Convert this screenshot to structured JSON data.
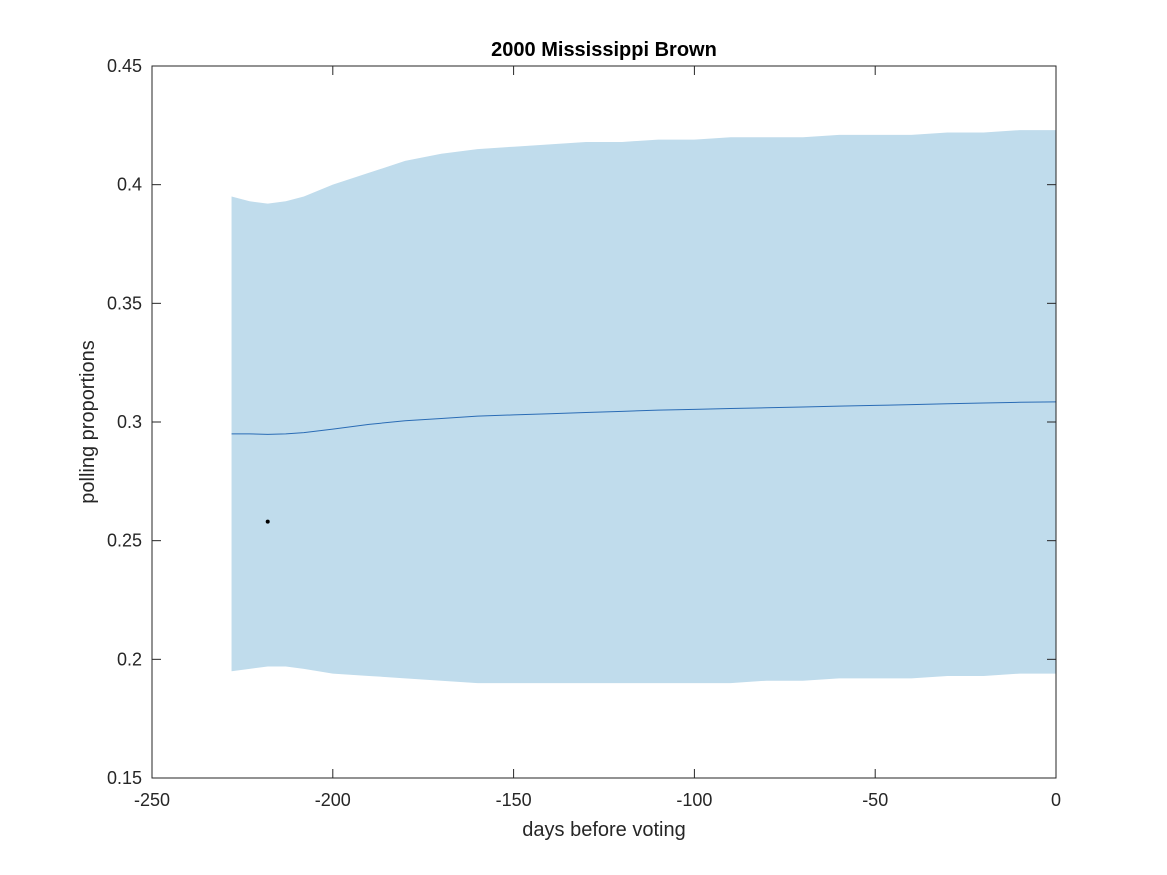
{
  "chart_data": {
    "type": "area",
    "title": "2000 Mississippi Brown",
    "xlabel": "days before voting",
    "ylabel": "polling proportions",
    "xlim": [
      -250,
      0
    ],
    "ylim": [
      0.15,
      0.45
    ],
    "xticks": [
      -250,
      -200,
      -150,
      -100,
      -50,
      0
    ],
    "xtick_labels": [
      "-250",
      "-200",
      "-150",
      "-100",
      "-50",
      "0"
    ],
    "yticks": [
      0.15,
      0.2,
      0.25,
      0.3,
      0.35,
      0.4,
      0.45
    ],
    "ytick_labels": [
      "0.15",
      "0.2",
      "0.25",
      "0.3",
      "0.35",
      "0.4",
      "0.45"
    ],
    "grid": false,
    "band": {
      "color": "#c0dcec",
      "x": [
        -228,
        -223,
        -218,
        -213,
        -208,
        -200,
        -190,
        -180,
        -170,
        -160,
        -150,
        -140,
        -130,
        -120,
        -110,
        -100,
        -90,
        -80,
        -70,
        -60,
        -50,
        -40,
        -30,
        -20,
        -10,
        0
      ],
      "upper": [
        0.395,
        0.393,
        0.392,
        0.393,
        0.395,
        0.4,
        0.405,
        0.41,
        0.413,
        0.415,
        0.416,
        0.417,
        0.418,
        0.418,
        0.419,
        0.419,
        0.42,
        0.42,
        0.42,
        0.421,
        0.421,
        0.421,
        0.422,
        0.422,
        0.423,
        0.423
      ],
      "lower": [
        0.195,
        0.196,
        0.197,
        0.197,
        0.196,
        0.194,
        0.193,
        0.192,
        0.191,
        0.19,
        0.19,
        0.19,
        0.19,
        0.19,
        0.19,
        0.19,
        0.19,
        0.191,
        0.191,
        0.192,
        0.192,
        0.192,
        0.193,
        0.193,
        0.194,
        0.194
      ]
    },
    "mean_line": {
      "color": "#2a6cb5",
      "x": [
        -228,
        -223,
        -218,
        -213,
        -208,
        -200,
        -190,
        -180,
        -170,
        -160,
        -150,
        -140,
        -130,
        -120,
        -110,
        -100,
        -90,
        -80,
        -70,
        -60,
        -50,
        -40,
        -30,
        -20,
        -10,
        0
      ],
      "y": [
        0.295,
        0.295,
        0.2948,
        0.295,
        0.2955,
        0.297,
        0.299,
        0.3005,
        0.3015,
        0.3025,
        0.303,
        0.3035,
        0.304,
        0.3045,
        0.305,
        0.3053,
        0.3057,
        0.306,
        0.3063,
        0.3067,
        0.307,
        0.3073,
        0.3077,
        0.308,
        0.3083,
        0.3085
      ]
    },
    "points": [
      {
        "x": -218,
        "y": 0.258,
        "color": "#000000"
      }
    ]
  }
}
